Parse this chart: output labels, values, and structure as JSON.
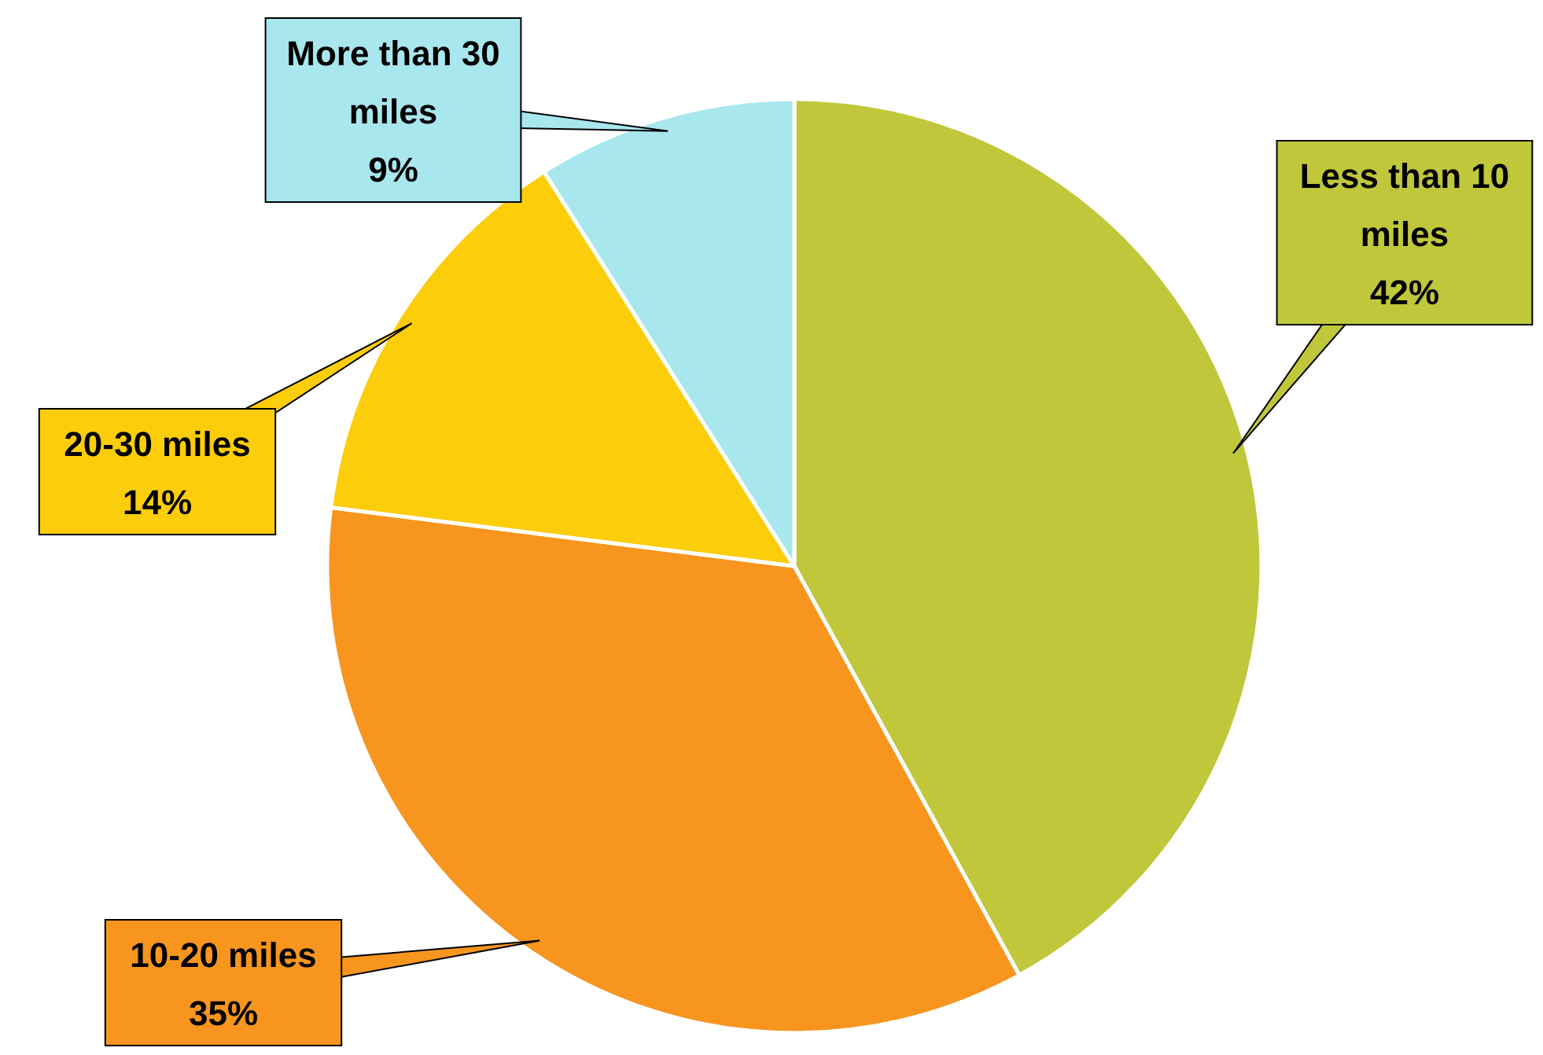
{
  "chart_data": {
    "type": "pie",
    "categories": [
      "Less than 10 miles",
      "10-20 miles",
      "20-30 miles",
      "More than 30 miles"
    ],
    "values": [
      42,
      35,
      14,
      9
    ],
    "value_labels": [
      "42%",
      "35%",
      "14%",
      "9%"
    ],
    "colors": [
      "#c0c73b",
      "#f7951f",
      "#fccd0a",
      "#a9e7ee"
    ]
  }
}
